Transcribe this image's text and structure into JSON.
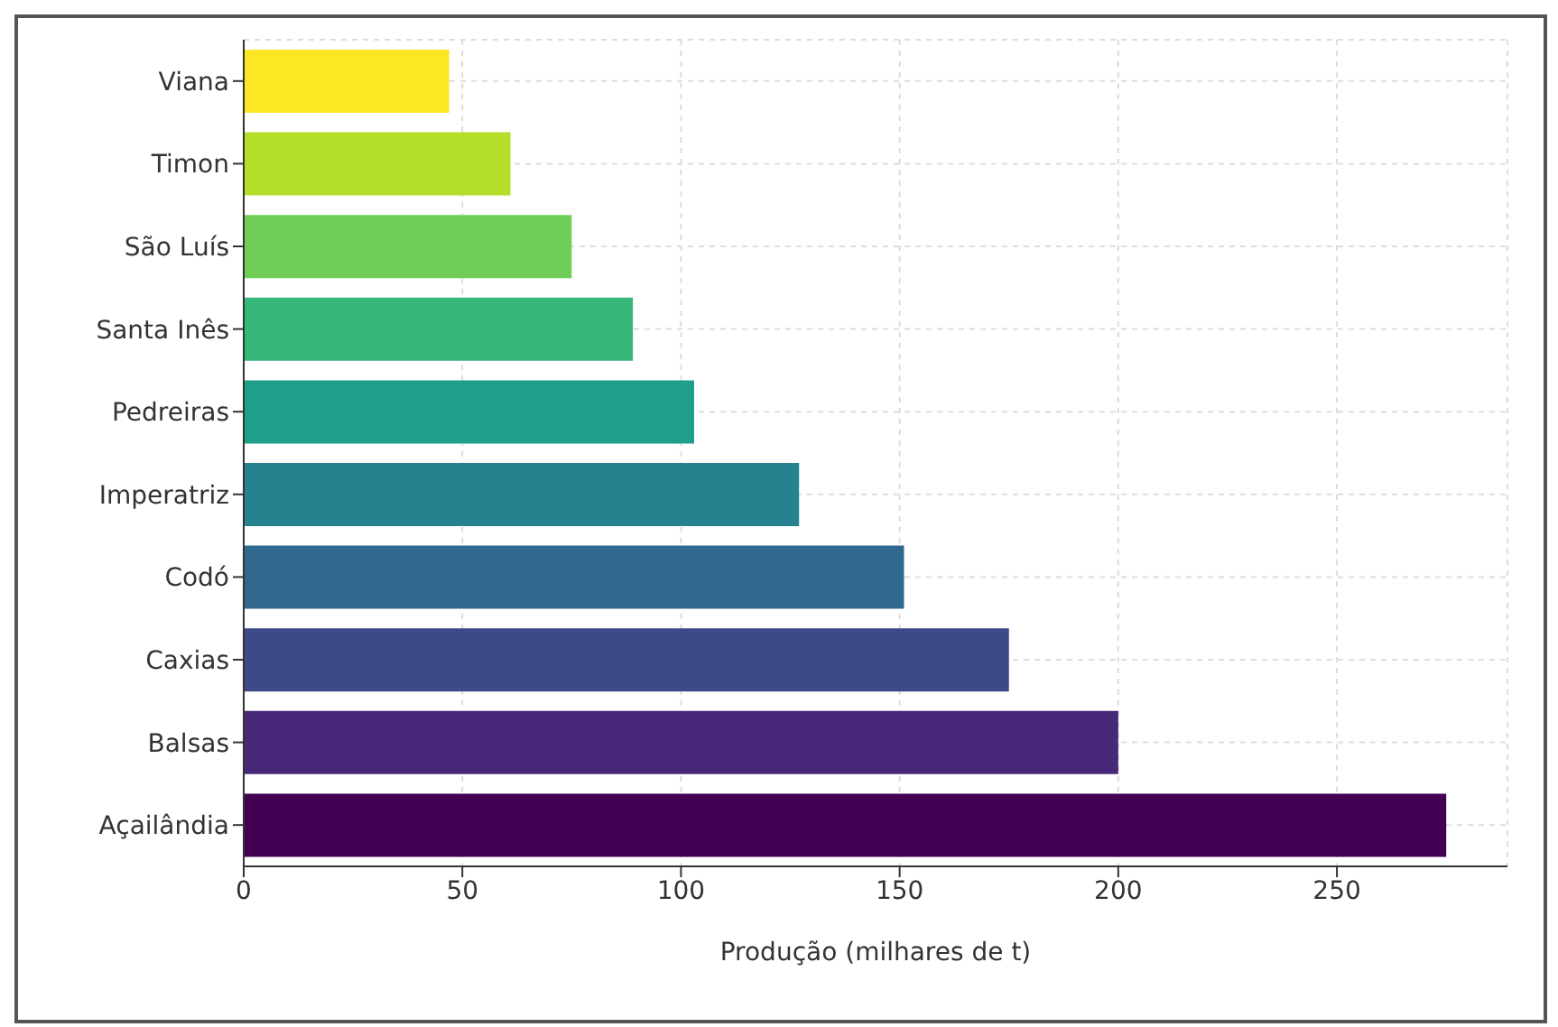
{
  "chart_data": {
    "type": "bar",
    "orientation": "horizontal",
    "xlabel": "Produção (milhares de t)",
    "categories": [
      "Viana",
      "Timon",
      "São Luís",
      "Santa Inês",
      "Pedreiras",
      "Imperatriz",
      "Codó",
      "Caxias",
      "Balsas",
      "Açailândia"
    ],
    "values": [
      47,
      61,
      75,
      89,
      103,
      127,
      151,
      175,
      200,
      275
    ],
    "colors": [
      "#fde725",
      "#b5de2b",
      "#6ece58",
      "#35b779",
      "#1f9e89",
      "#26828e",
      "#31688e",
      "#3e4989",
      "#482878",
      "#440154"
    ],
    "xlim": [
      0,
      289
    ],
    "xticks": [
      0,
      50,
      100,
      150,
      200,
      250
    ],
    "grid": true
  }
}
